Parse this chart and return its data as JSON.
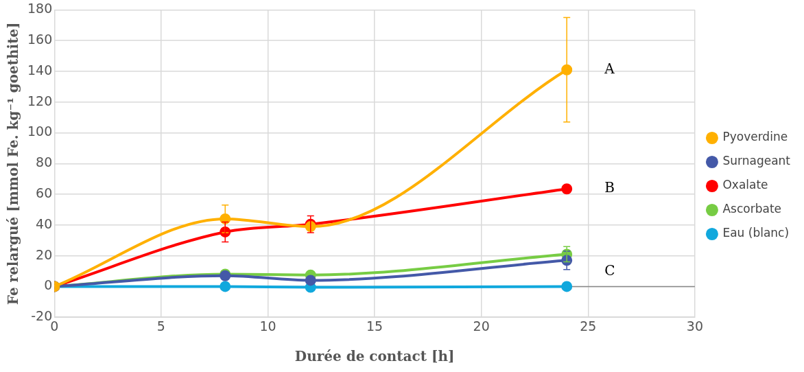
{
  "chart_data": {
    "type": "line",
    "xlabel": "Durée de contact [h]",
    "ylabel": "Fe relargué [mmol Fe. kg⁻¹ goethite]",
    "x": [
      0,
      8,
      12,
      24
    ],
    "series": [
      {
        "name": "Pyoverdine",
        "color": "#ffb000",
        "values": [
          0,
          44,
          39,
          141
        ],
        "errors": [
          null,
          9,
          null,
          34
        ]
      },
      {
        "name": "Surnageant",
        "color": "#4459a8",
        "values": [
          0,
          7,
          4,
          17
        ],
        "errors": [
          null,
          null,
          null,
          6
        ]
      },
      {
        "name": "Oxalate",
        "color": "#ff0000",
        "values": [
          0,
          35.5,
          40.5,
          63.5
        ],
        "errors": [
          null,
          6.5,
          5.5,
          null
        ]
      },
      {
        "name": "Ascorbate",
        "color": "#77cc44",
        "values": [
          0,
          8,
          7.5,
          21
        ],
        "errors": [
          null,
          null,
          null,
          5
        ]
      },
      {
        "name": "Eau (blanc)",
        "color": "#11a8dd",
        "values": [
          0,
          0,
          -0.5,
          0
        ]
      }
    ],
    "xlim": [
      0,
      30
    ],
    "xticks": [
      0,
      5,
      10,
      15,
      20,
      25,
      30
    ],
    "ylim": [
      -20,
      180
    ],
    "yticks": [
      -20,
      0,
      20,
      40,
      60,
      80,
      100,
      120,
      140,
      160,
      180
    ],
    "grid": true,
    "legend": "right",
    "marker": "circle",
    "line_style": "solid",
    "annotations": [
      "A",
      "B",
      "C"
    ]
  }
}
